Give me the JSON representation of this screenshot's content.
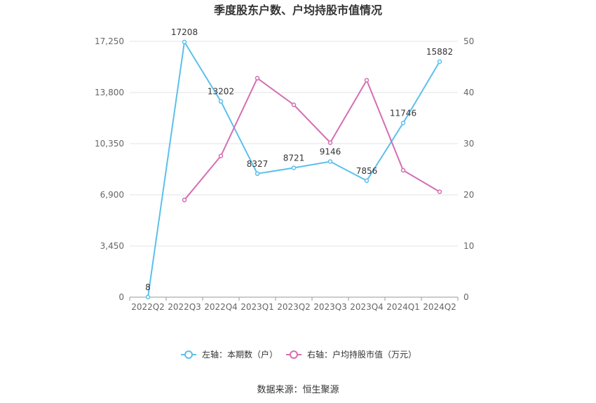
{
  "chart_data": {
    "type": "line",
    "title": "季度股东户数、户均持股市值情况",
    "categories": [
      "2022Q2",
      "2022Q3",
      "2022Q4",
      "2023Q1",
      "2023Q2",
      "2023Q3",
      "2023Q4",
      "2024Q1",
      "2024Q2"
    ],
    "y_left": {
      "ticks": [
        "0",
        "3,450",
        "6,900",
        "10,350",
        "13,800",
        "17,250"
      ],
      "min": 0,
      "max": 17250
    },
    "y_right": {
      "ticks": [
        "0",
        "10",
        "20",
        "30",
        "40",
        "50"
      ],
      "min": 0,
      "max": 50
    },
    "series": [
      {
        "name": "左轴：本期数（户）",
        "axis": "left",
        "color": "#5bc0eb",
        "values": [
          8,
          17208,
          13202,
          8327,
          8721,
          9146,
          7856,
          11746,
          15882
        ],
        "labels": [
          "8",
          "17208",
          "13202",
          "8327",
          "8721",
          "9146",
          "7856",
          "11746",
          "15882"
        ]
      },
      {
        "name": "右轴：户均持股市值（万元）",
        "axis": "right",
        "color": "#d46eb3",
        "values": [
          null,
          19.0,
          27.6,
          42.8,
          37.6,
          30.2,
          42.4,
          24.8,
          20.6
        ]
      }
    ],
    "grid": true,
    "legend_position": "bottom"
  },
  "source": "数据来源：恒生聚源"
}
